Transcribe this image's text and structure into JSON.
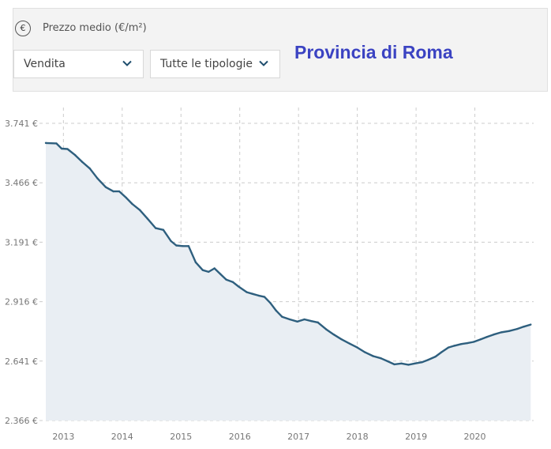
{
  "header": {
    "currency_icon": "euro-circle-icon",
    "currency_symbol": "€",
    "metric_label": "Prezzo medio (€/m²)",
    "contract_select": {
      "value": "Vendita",
      "icon": "chevron-down-icon"
    },
    "type_select": {
      "value": "Tutte le tipologie",
      "icon": "chevron-down-icon"
    },
    "region_title": "Provincia di Roma"
  },
  "colors": {
    "line": "#2e5f7e",
    "area": "#e9eef3",
    "grid": "#cccccc",
    "region_title": "#3b43c2"
  },
  "chart_data": {
    "type": "area",
    "title": "",
    "xlabel": "",
    "ylabel": "",
    "grid": true,
    "y_ticks": [
      2366,
      2641,
      2916,
      3191,
      3466,
      3741
    ],
    "y_tick_labels": [
      "2.366 €",
      "2.641 €",
      "2.916 €",
      "3.191 €",
      "3.466 €",
      "3.741 €"
    ],
    "x_ticks": [
      2013,
      2014,
      2015,
      2016,
      2017,
      2018,
      2019,
      2020
    ],
    "x_tick_labels": [
      "2013",
      "2014",
      "2015",
      "2016",
      "2017",
      "2018",
      "2019",
      "2020"
    ],
    "xlim": [
      2012.7,
      2021.0
    ],
    "ylim": [
      2366,
      3741
    ],
    "series": [
      {
        "x": [
          2012.7,
          2012.88,
          2012.97,
          2013.07,
          2013.2,
          2013.32,
          2013.45,
          2013.58,
          2013.72,
          2013.85,
          2013.95,
          2014.07,
          2014.17,
          2014.3,
          2014.43,
          2014.57,
          2014.7,
          2014.83,
          2014.92,
          2015.03,
          2015.13,
          2015.25,
          2015.37,
          2015.47,
          2015.57,
          2015.67,
          2015.77,
          2015.88,
          2015.98,
          2016.12,
          2016.22,
          2016.32,
          2016.42,
          2016.52,
          2016.62,
          2016.72,
          2016.85,
          2016.98,
          2017.1,
          2017.22,
          2017.33,
          2017.47,
          2017.6,
          2017.73,
          2017.87,
          2018.0,
          2018.13,
          2018.27,
          2018.4,
          2018.52,
          2018.63,
          2018.75,
          2018.87,
          2018.98,
          2019.1,
          2019.2,
          2019.33,
          2019.43,
          2019.55,
          2019.65,
          2019.77,
          2019.87,
          2019.98,
          2020.1,
          2020.2,
          2020.32,
          2020.45,
          2020.58,
          2020.72,
          2020.83,
          2020.95
        ],
        "values": [
          3650,
          3648,
          3624,
          3622,
          3594,
          3562,
          3532,
          3486,
          3446,
          3426,
          3426,
          3396,
          3368,
          3340,
          3300,
          3256,
          3248,
          3196,
          3176,
          3173,
          3173,
          3098,
          3062,
          3054,
          3070,
          3044,
          3018,
          3007,
          2986,
          2960,
          2952,
          2944,
          2938,
          2910,
          2874,
          2846,
          2834,
          2824,
          2834,
          2826,
          2820,
          2788,
          2764,
          2742,
          2722,
          2704,
          2682,
          2664,
          2654,
          2640,
          2626,
          2630,
          2624,
          2630,
          2636,
          2646,
          2662,
          2682,
          2704,
          2712,
          2720,
          2724,
          2730,
          2742,
          2752,
          2764,
          2774,
          2780,
          2790,
          2800,
          2810
        ]
      }
    ]
  }
}
